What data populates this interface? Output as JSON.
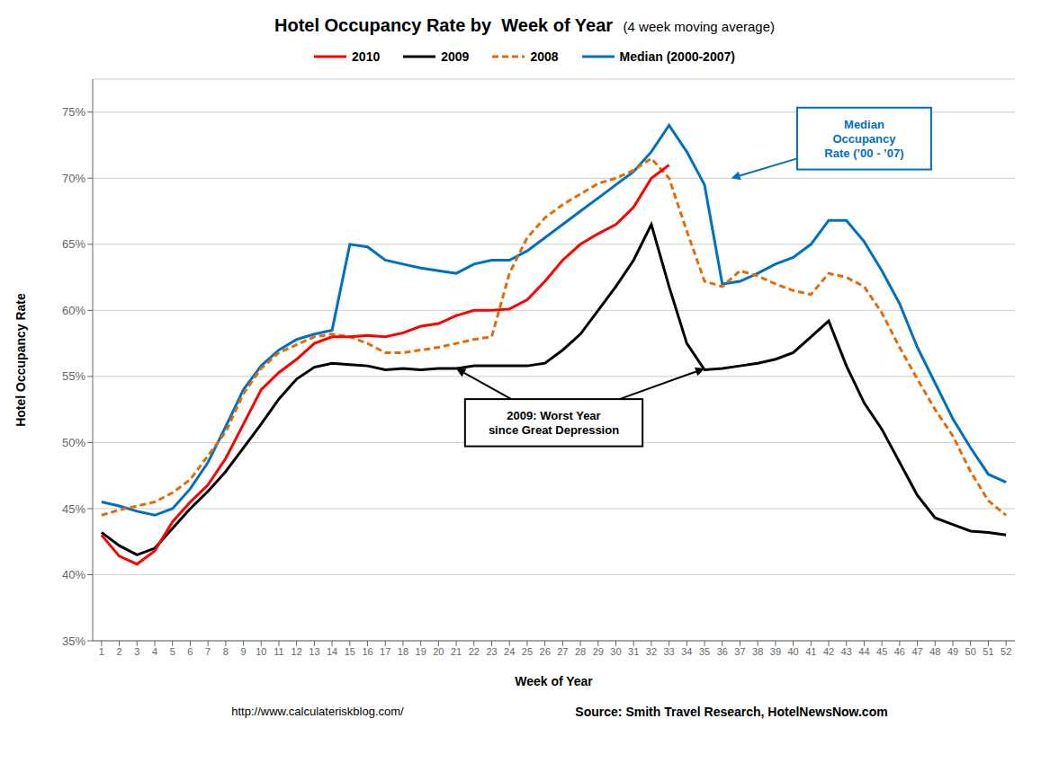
{
  "chart_data": {
    "type": "line",
    "title": "Hotel Occupancy Rate by  Week of Year ",
    "subtitle": "(4 week moving average)",
    "xlabel": "Week of Year",
    "ylabel": "Hotel Occupancy Rate",
    "x": [
      1,
      2,
      3,
      4,
      5,
      6,
      7,
      8,
      9,
      10,
      11,
      12,
      13,
      14,
      15,
      16,
      17,
      18,
      19,
      20,
      21,
      22,
      23,
      24,
      25,
      26,
      27,
      28,
      29,
      30,
      31,
      32,
      33,
      34,
      35,
      36,
      37,
      38,
      39,
      40,
      41,
      42,
      43,
      44,
      45,
      46,
      47,
      48,
      49,
      50,
      51,
      52
    ],
    "xlim": [
      0.5,
      52.5
    ],
    "xticks": [
      1,
      2,
      3,
      4,
      5,
      6,
      7,
      8,
      9,
      10,
      11,
      12,
      13,
      14,
      15,
      16,
      17,
      18,
      19,
      20,
      21,
      22,
      23,
      24,
      25,
      26,
      27,
      28,
      29,
      30,
      31,
      32,
      33,
      34,
      35,
      36,
      37,
      38,
      39,
      40,
      41,
      42,
      43,
      44,
      45,
      46,
      47,
      48,
      49,
      50,
      51,
      52
    ],
    "ylim": [
      0.35,
      0.775
    ],
    "yticks": [
      {
        "value": 0.35,
        "label": "35%"
      },
      {
        "value": 0.4,
        "label": "40%"
      },
      {
        "value": 0.45,
        "label": "45%"
      },
      {
        "value": 0.5,
        "label": "50%"
      },
      {
        "value": 0.55,
        "label": "55%"
      },
      {
        "value": 0.6,
        "label": "60%"
      },
      {
        "value": 0.65,
        "label": "65%"
      },
      {
        "value": 0.7,
        "label": "70%"
      },
      {
        "value": 0.75,
        "label": "75%"
      }
    ],
    "grid": true,
    "series": [
      {
        "name": "2010",
        "color": "#ff0000",
        "line_style": "solid",
        "values": [
          0.43,
          0.414,
          0.408,
          0.418,
          0.44,
          0.455,
          0.468,
          0.488,
          0.514,
          0.54,
          0.553,
          0.563,
          0.575,
          0.58,
          0.58,
          0.581,
          0.58,
          0.583,
          0.588,
          0.59,
          0.596,
          0.6,
          0.6,
          0.601,
          0.608,
          0.622,
          0.638,
          0.65,
          0.658,
          0.665,
          0.678,
          0.7,
          0.71,
          null,
          null,
          null,
          null,
          null,
          null,
          null,
          null,
          null,
          null,
          null,
          null,
          null,
          null,
          null,
          null,
          null,
          null,
          null
        ]
      },
      {
        "name": "2009",
        "color": "#000000",
        "line_style": "solid",
        "values": [
          0.432,
          0.422,
          0.415,
          0.42,
          0.435,
          0.45,
          0.463,
          0.478,
          0.496,
          0.514,
          0.533,
          0.548,
          0.557,
          0.56,
          0.559,
          0.558,
          0.555,
          0.556,
          0.555,
          0.556,
          0.556,
          0.558,
          0.558,
          0.558,
          0.558,
          0.56,
          0.57,
          0.582,
          0.6,
          0.618,
          0.638,
          0.665,
          0.618,
          0.575,
          0.555,
          0.556,
          0.558,
          0.56,
          0.563,
          0.568,
          0.58,
          0.592,
          0.558,
          0.53,
          0.51,
          0.485,
          0.46,
          0.443,
          0.438,
          0.433,
          0.432,
          0.43
        ]
      },
      {
        "name": "2008",
        "color": "#e36c09",
        "line_style": "dashed",
        "values": [
          0.445,
          0.449,
          0.452,
          0.455,
          0.462,
          0.472,
          0.49,
          0.508,
          0.537,
          0.556,
          0.568,
          0.574,
          0.58,
          0.582,
          0.58,
          0.575,
          0.568,
          0.568,
          0.57,
          0.572,
          0.575,
          0.578,
          0.58,
          0.628,
          0.655,
          0.67,
          0.68,
          0.688,
          0.696,
          0.7,
          0.706,
          0.715,
          0.7,
          0.66,
          0.622,
          0.618,
          0.63,
          0.626,
          0.62,
          0.615,
          0.612,
          0.628,
          0.625,
          0.618,
          0.598,
          0.572,
          0.548,
          0.525,
          0.505,
          0.478,
          0.456,
          0.445
        ]
      },
      {
        "name": "Median (2000-2007)",
        "color": "#0070c0",
        "line_style": "solid",
        "values": [
          0.455,
          0.452,
          0.448,
          0.445,
          0.45,
          0.465,
          0.485,
          0.512,
          0.54,
          0.558,
          0.57,
          0.578,
          0.582,
          0.585,
          0.65,
          0.648,
          0.638,
          0.635,
          0.632,
          0.63,
          0.628,
          0.635,
          0.638,
          0.638,
          0.645,
          0.655,
          0.665,
          0.675,
          0.685,
          0.695,
          0.705,
          0.72,
          0.74,
          0.72,
          0.695,
          0.62,
          0.622,
          0.628,
          0.635,
          0.64,
          0.65,
          0.668,
          0.668,
          0.652,
          0.63,
          0.605,
          0.572,
          0.545,
          0.518,
          0.496,
          0.476,
          0.47
        ]
      }
    ],
    "annotations": [
      {
        "text": "2009: Worst Year\nsince Great Depression",
        "x": 26.5,
        "y": 0.515,
        "color": "#000000",
        "arrows": [
          {
            "x": 21,
            "y": 0.556
          },
          {
            "x": 35,
            "y": 0.556
          }
        ]
      },
      {
        "text": "Median\nOccupancy\nRate (’00 - ’07)",
        "x": 44,
        "y": 0.73,
        "color": "#0070c0",
        "arrows": [
          {
            "x": 36.5,
            "y": 0.7
          }
        ]
      }
    ],
    "footnotes": [
      "http://www.calculateriskblog.com/",
      "Source: Smith Travel Research, HotelNewsNow.com"
    ]
  }
}
